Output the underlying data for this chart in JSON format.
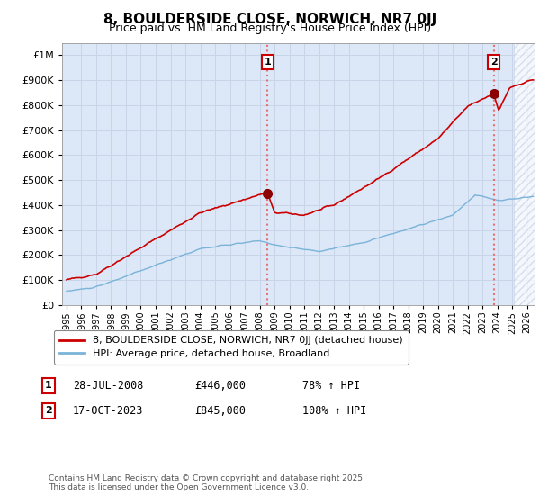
{
  "title": "8, BOULDERSIDE CLOSE, NORWICH, NR7 0JJ",
  "subtitle": "Price paid vs. HM Land Registry's House Price Index (HPI)",
  "legend_entries": [
    "8, BOULDERSIDE CLOSE, NORWICH, NR7 0JJ (detached house)",
    "HPI: Average price, detached house, Broadland"
  ],
  "sale1_date": "28-JUL-2008",
  "sale1_price": 446000,
  "sale1_label": "78% ↑ HPI",
  "sale2_date": "17-OCT-2023",
  "sale2_price": 845000,
  "sale2_label": "108% ↑ HPI",
  "hpi_line_color": "#7ab3d8",
  "price_line_color": "#cc0000",
  "marker_color": "#8b0000",
  "vline_color": "#e87070",
  "grid_color": "#c8d4e8",
  "background_color": "#dce8f8",
  "ylim": [
    0,
    1050000
  ],
  "sale1_year_f": 2008.54,
  "sale2_year_f": 2023.75,
  "footnote": "Contains HM Land Registry data © Crown copyright and database right 2025.\nThis data is licensed under the Open Government Licence v3.0."
}
